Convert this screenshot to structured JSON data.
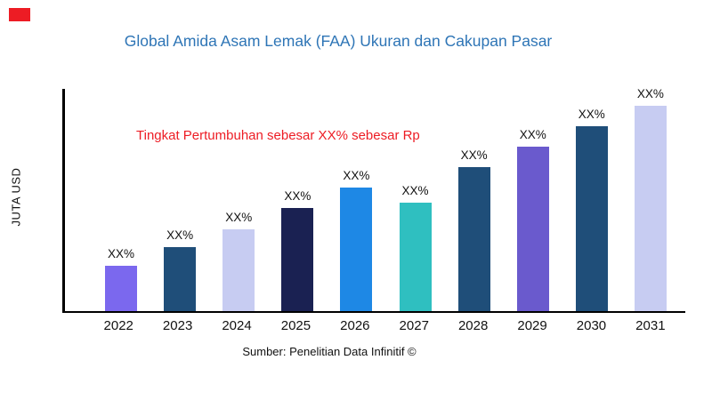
{
  "brand": {
    "accent_red": "#ed1c24",
    "title_blue": "#2e75b6"
  },
  "title": "Global Amida Asam Lemak (FAA) Ukuran dan Cakupan Pasar",
  "annotation": "Tingkat Pertumbuhan sebesar XX% sebesar Rp",
  "y_axis_label": "JUTA USD",
  "source": "Sumber: Penelitian Data Infinitif ©",
  "chart_data": {
    "type": "bar",
    "title": "Global Amida Asam Lemak (FAA) Ukuran dan Cakupan Pasar",
    "xlabel": "",
    "ylabel": "JUTA USD",
    "categories": [
      "2022",
      "2023",
      "2024",
      "2025",
      "2026",
      "2027",
      "2028",
      "2029",
      "2030",
      "2031"
    ],
    "values": [
      22,
      31,
      40,
      50,
      60,
      53,
      70,
      80,
      90,
      100
    ],
    "bar_labels": [
      "XX%",
      "XX%",
      "XX%",
      "XX%",
      "XX%",
      "XX%",
      "XX%",
      "XX%",
      "XX%",
      "XX%"
    ],
    "bar_colors": [
      "#7b68ee",
      "#1f4e79",
      "#c7ccf2",
      "#1a2152",
      "#1e88e5",
      "#2fbfc0",
      "#1f4e79",
      "#6a5acd",
      "#1f4e79",
      "#c7ccf2"
    ],
    "annotation": "Tingkat Pertumbuhan sebesar XX% sebesar Rp",
    "legend": "none",
    "grid": false,
    "ylim": [
      0,
      110
    ]
  }
}
